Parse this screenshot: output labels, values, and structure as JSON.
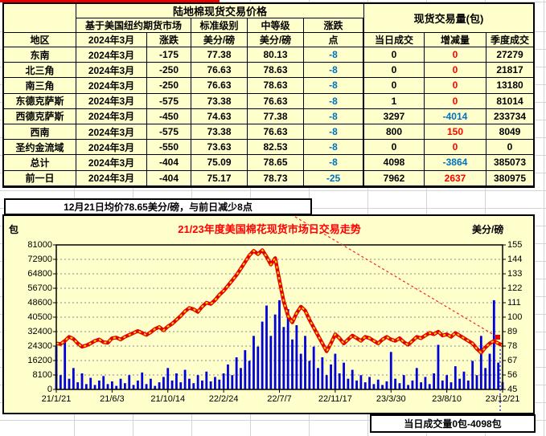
{
  "table": {
    "title": "陆地棉现货交易价格",
    "volume_title": "现货交易量(包)",
    "header2": {
      "futures_market": "基于美国纽约期货市场",
      "standard_grade": "标准级别",
      "middling_grade": "中等级",
      "change": "涨跌"
    },
    "header3": {
      "region": "地区",
      "month": "2024年3月",
      "change": "涨跌",
      "unit_standard": "美分/磅",
      "unit_middling": "美分/磅",
      "points": "点",
      "day_volume": "当日成交",
      "volume_change": "增减量",
      "season_volume": "季度成交"
    },
    "rows": [
      {
        "region": "东南",
        "month": "2024年3月",
        "change": "-175",
        "standard": "77.38",
        "middling": "80.13",
        "points": "-8",
        "day_volume": "0",
        "volume_change": "0",
        "volume_change_color": "red",
        "season_volume": "27279"
      },
      {
        "region": "北三角",
        "month": "2024年3月",
        "change": "-250",
        "standard": "76.63",
        "middling": "78.63",
        "points": "-8",
        "day_volume": "0",
        "volume_change": "0",
        "volume_change_color": "red",
        "season_volume": "21817"
      },
      {
        "region": "南三角",
        "month": "2024年3月",
        "change": "-250",
        "standard": "76.63",
        "middling": "78.63",
        "points": "-8",
        "day_volume": "0",
        "volume_change": "0",
        "volume_change_color": "red",
        "season_volume": "13180"
      },
      {
        "region": "东德克萨斯",
        "month": "2024年3月",
        "change": "-575",
        "standard": "73.38",
        "middling": "76.63",
        "points": "-8",
        "day_volume": "1",
        "volume_change": "0",
        "volume_change_color": "red",
        "season_volume": "81014"
      },
      {
        "region": "西德克萨斯",
        "month": "2024年3月",
        "change": "-450",
        "standard": "74.63",
        "middling": "77.38",
        "points": "-8",
        "day_volume": "3297",
        "volume_change": "-4014",
        "volume_change_color": "blue",
        "season_volume": "233734"
      },
      {
        "region": "西南",
        "month": "2024年3月",
        "change": "-575",
        "standard": "73.38",
        "middling": "76.63",
        "points": "-8",
        "day_volume": "800",
        "volume_change": "150",
        "volume_change_color": "red",
        "season_volume": "8049"
      },
      {
        "region": "圣约金流域",
        "month": "2024年3月",
        "change": "-550",
        "standard": "73.63",
        "middling": "82.53",
        "points": "-8",
        "day_volume": "0",
        "volume_change": "0",
        "volume_change_color": "red",
        "season_volume": "0"
      },
      {
        "region": "总计",
        "month": "2024年3月",
        "change": "-404",
        "standard": "75.09",
        "middling": "78.65",
        "points": "-8",
        "day_volume": "4098",
        "volume_change": "-3864",
        "volume_change_color": "blue",
        "season_volume": "385073"
      },
      {
        "region": "前一日",
        "month": "2024年3月",
        "change": "-404",
        "standard": "75.17",
        "middling": "78.73",
        "points": "-25",
        "day_volume": "7962",
        "volume_change": "2637",
        "volume_change_color": "red",
        "season_volume": "380975"
      }
    ]
  },
  "notes": {
    "top": "12月21日均价78.65美分/磅，与前日减少8点",
    "bottom": "当日成交量0包-4098包"
  },
  "colors": {
    "sheet_bg": "#FFFFCC",
    "negative_blue": "#0070C0",
    "positive_red": "#FF0000",
    "bar_blue": "#0000D8",
    "line_red": "#E60000",
    "line_yellow": "#FFD800",
    "title_red": "#FF0000"
  },
  "chart_data": {
    "type": "bar+line",
    "title": "21/23年度美国棉花现货市场日交易走势",
    "y_left": {
      "label": "包",
      "min": 0,
      "max": 81000,
      "ticks": [
        81000,
        72900,
        64800,
        56700,
        48600,
        40500,
        32400,
        24300,
        16200,
        8100,
        0
      ]
    },
    "y_right": {
      "label": "美分/磅",
      "min": 45,
      "max": 155,
      "ticks": [
        155,
        144,
        133,
        122,
        111,
        100,
        89,
        78,
        67,
        56,
        45
      ]
    },
    "x_ticks": [
      "21/1/21",
      "21/6/3",
      "21/10/14",
      "22/2/24",
      "22/7/7",
      "22/11/17",
      "23/3/30",
      "23/8/10",
      "23/12/21"
    ],
    "grid": true,
    "legend": "none",
    "series": [
      {
        "name": "volume_bars",
        "type": "bar",
        "axis": "left",
        "color": "#0000D8",
        "values": [
          24000,
          8000,
          27000,
          6000,
          12000,
          4000,
          9000,
          3000,
          6500,
          2500,
          5000,
          7500,
          3000,
          4500,
          2000,
          6000,
          3500,
          8000,
          2500,
          5000,
          9500,
          3000,
          6000,
          2000,
          4000,
          7000,
          12000,
          5000,
          9000,
          4000,
          11000,
          6000,
          3500,
          8000,
          5000,
          10000,
          4500,
          7000,
          5500,
          9000,
          14000,
          8000,
          18000,
          12000,
          22000,
          16000,
          30000,
          24000,
          38000,
          47000,
          30000,
          42000,
          50000,
          35000,
          45000,
          28000,
          36000,
          20000,
          30000,
          16000,
          24000,
          12000,
          18000,
          8000,
          14000,
          20000,
          9000,
          15000,
          6000,
          11000,
          5000,
          8000,
          4000,
          7000,
          3000,
          5500,
          2500,
          4500,
          21000,
          6000,
          3500,
          8000,
          2500,
          5000,
          12000,
          4000,
          7000,
          3000,
          9000,
          25000,
          5000,
          8000,
          4000,
          13000,
          6000,
          10000,
          5000,
          16000,
          8000,
          30000,
          12000,
          20000,
          50000,
          15000,
          4098
        ]
      },
      {
        "name": "price_line",
        "type": "line",
        "axis": "right",
        "color": "#E60000",
        "marker_color": "#FFD800",
        "values": [
          80,
          79.5,
          82,
          85,
          83.5,
          80,
          77.5,
          78.5,
          80,
          82,
          83,
          81,
          80.5,
          84,
          84.5,
          83,
          85,
          86.5,
          88,
          89.5,
          88,
          86.5,
          88.5,
          91,
          92.5,
          90,
          93,
          95,
          98,
          101,
          104.5,
          107,
          106,
          104,
          108,
          111,
          110,
          113,
          117,
          120,
          124,
          128,
          132,
          137,
          142,
          147,
          150.5,
          148,
          151,
          146,
          140,
          145,
          128,
          112,
          101,
          96,
          103,
          108,
          105,
          98,
          92,
          86,
          80,
          74,
          80,
          87,
          84,
          80,
          83,
          86,
          84,
          82,
          85,
          84,
          82,
          80,
          83,
          85,
          83,
          82,
          84,
          81,
          79,
          82,
          85,
          84,
          86,
          88,
          87,
          89,
          86,
          87,
          85,
          88,
          86,
          84,
          82,
          80,
          76,
          73,
          77,
          80,
          82,
          80,
          78.65
        ]
      }
    ]
  }
}
